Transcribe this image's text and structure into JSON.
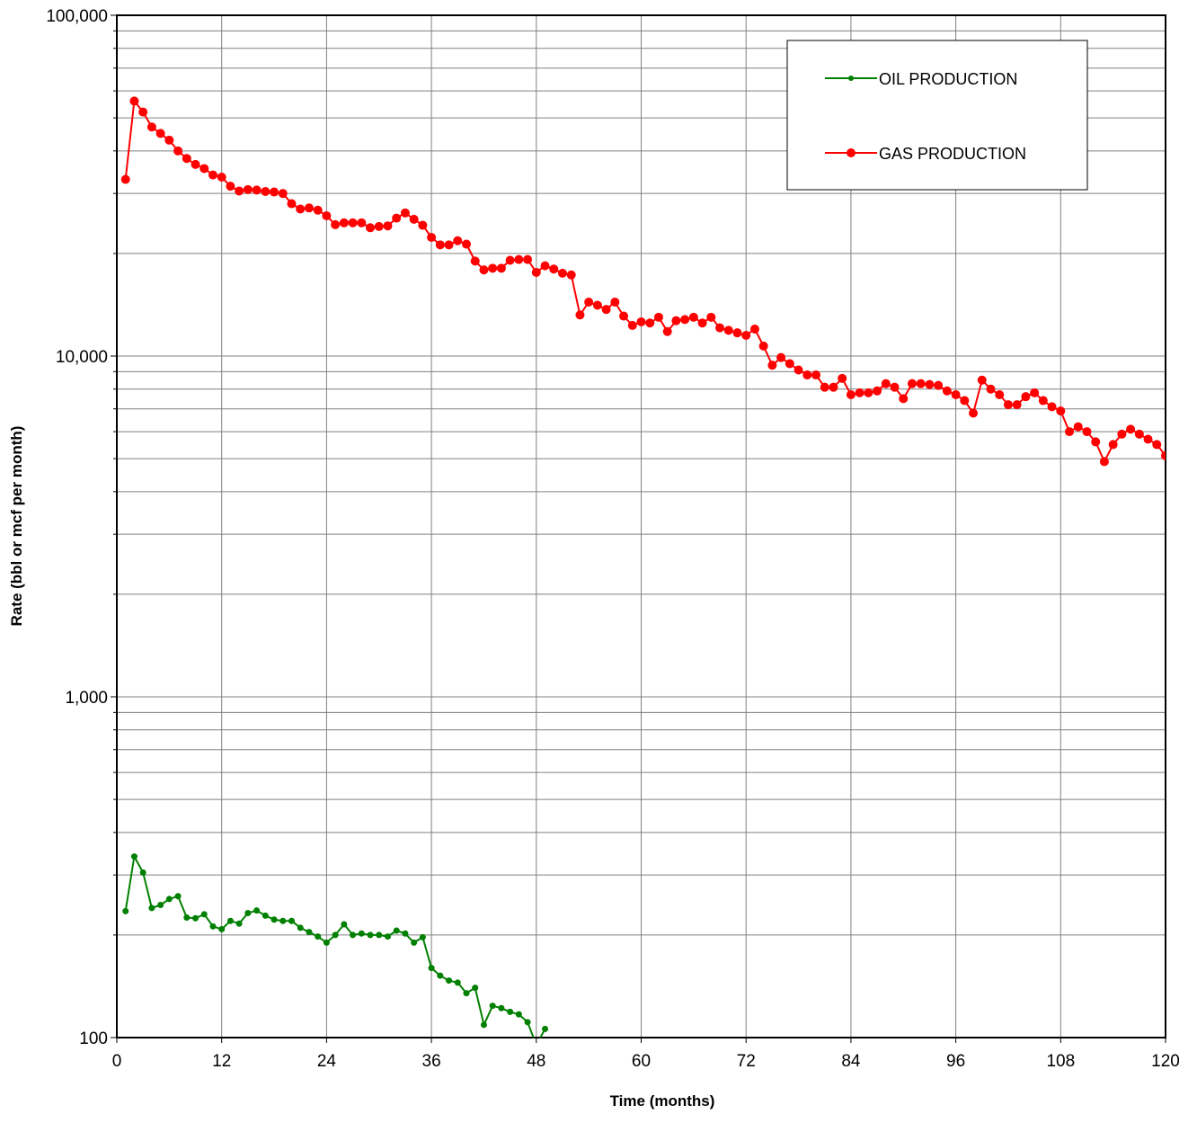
{
  "chart_data": {
    "type": "line",
    "xlabel": "Time (months)",
    "ylabel": "Rate (bbl or mcf per month)",
    "x_scale": "linear",
    "y_scale": "log",
    "xlim": [
      0,
      120
    ],
    "ylim": [
      100,
      100000
    ],
    "x_ticks": [
      "0",
      "12",
      "24",
      "36",
      "48",
      "60",
      "72",
      "84",
      "96",
      "108",
      "120"
    ],
    "x_tick_values": [
      0,
      12,
      24,
      36,
      48,
      60,
      72,
      84,
      96,
      108,
      120
    ],
    "y_ticks": [
      "100",
      "1,000",
      "10,000",
      "100,000"
    ],
    "y_tick_values": [
      100,
      1000,
      10000,
      100000
    ],
    "grid": true,
    "legend_position": "top-right",
    "series": [
      {
        "name": "OIL PRODUCTION",
        "color": "#008000",
        "marker": "small-circle",
        "points": [
          [
            1,
            235
          ],
          [
            2,
            340
          ],
          [
            3,
            305
          ],
          [
            4,
            240
          ],
          [
            5,
            245
          ],
          [
            6,
            255
          ],
          [
            7,
            260
          ],
          [
            8,
            225
          ],
          [
            9,
            224
          ],
          [
            10,
            230
          ],
          [
            11,
            212
          ],
          [
            12,
            208
          ],
          [
            13,
            220
          ],
          [
            14,
            216
          ],
          [
            15,
            232
          ],
          [
            16,
            236
          ],
          [
            17,
            228
          ],
          [
            18,
            222
          ],
          [
            19,
            220
          ],
          [
            20,
            220
          ],
          [
            21,
            210
          ],
          [
            22,
            204
          ],
          [
            23,
            198
          ],
          [
            24,
            190
          ],
          [
            25,
            200
          ],
          [
            26,
            215
          ],
          [
            27,
            200
          ],
          [
            28,
            202
          ],
          [
            29,
            200
          ],
          [
            30,
            200
          ],
          [
            31,
            198
          ],
          [
            32,
            206
          ],
          [
            33,
            202
          ],
          [
            34,
            190
          ],
          [
            35,
            197
          ],
          [
            36,
            160
          ],
          [
            37,
            152
          ],
          [
            38,
            147
          ],
          [
            39,
            145
          ],
          [
            40,
            135
          ],
          [
            41,
            140
          ],
          [
            42,
            109
          ],
          [
            43,
            124
          ],
          [
            44,
            122
          ],
          [
            45,
            119
          ],
          [
            46,
            117
          ],
          [
            47,
            111
          ],
          [
            48,
            95
          ],
          [
            49,
            106
          ]
        ]
      },
      {
        "name": "GAS PRODUCTION",
        "color": "#ff0000",
        "marker": "circle",
        "points": [
          [
            1,
            33000
          ],
          [
            2,
            56000
          ],
          [
            3,
            52000
          ],
          [
            4,
            47000
          ],
          [
            5,
            45000
          ],
          [
            6,
            43000
          ],
          [
            7,
            40000
          ],
          [
            8,
            38000
          ],
          [
            9,
            36500
          ],
          [
            10,
            35500
          ],
          [
            11,
            34000
          ],
          [
            12,
            33500
          ],
          [
            13,
            31500
          ],
          [
            14,
            30500
          ],
          [
            15,
            30800
          ],
          [
            16,
            30700
          ],
          [
            17,
            30400
          ],
          [
            18,
            30300
          ],
          [
            19,
            30000
          ],
          [
            20,
            28000
          ],
          [
            21,
            27000
          ],
          [
            22,
            27200
          ],
          [
            23,
            26800
          ],
          [
            24,
            25800
          ],
          [
            25,
            24300
          ],
          [
            26,
            24600
          ],
          [
            27,
            24600
          ],
          [
            28,
            24600
          ],
          [
            29,
            23800
          ],
          [
            30,
            24000
          ],
          [
            31,
            24100
          ],
          [
            32,
            25400
          ],
          [
            33,
            26300
          ],
          [
            34,
            25200
          ],
          [
            35,
            24200
          ],
          [
            36,
            22300
          ],
          [
            37,
            21200
          ],
          [
            38,
            21200
          ],
          [
            39,
            21800
          ],
          [
            40,
            21300
          ],
          [
            41,
            19000
          ],
          [
            42,
            17900
          ],
          [
            43,
            18100
          ],
          [
            44,
            18100
          ],
          [
            45,
            19100
          ],
          [
            46,
            19200
          ],
          [
            47,
            19200
          ],
          [
            48,
            17600
          ],
          [
            49,
            18400
          ],
          [
            50,
            18000
          ],
          [
            51,
            17500
          ],
          [
            52,
            17300
          ],
          [
            53,
            13200
          ],
          [
            54,
            14400
          ],
          [
            55,
            14100
          ],
          [
            56,
            13700
          ],
          [
            57,
            14400
          ],
          [
            58,
            13100
          ],
          [
            59,
            12300
          ],
          [
            60,
            12600
          ],
          [
            61,
            12500
          ],
          [
            62,
            13000
          ],
          [
            63,
            11800
          ],
          [
            64,
            12700
          ],
          [
            65,
            12800
          ],
          [
            66,
            13000
          ],
          [
            67,
            12500
          ],
          [
            68,
            13000
          ],
          [
            69,
            12100
          ],
          [
            70,
            11900
          ],
          [
            71,
            11700
          ],
          [
            72,
            11500
          ],
          [
            73,
            12000
          ],
          [
            74,
            10700
          ],
          [
            75,
            9400
          ],
          [
            76,
            9900
          ],
          [
            77,
            9500
          ],
          [
            78,
            9100
          ],
          [
            79,
            8800
          ],
          [
            80,
            8800
          ],
          [
            81,
            8100
          ],
          [
            82,
            8100
          ],
          [
            83,
            8600
          ],
          [
            84,
            7700
          ],
          [
            85,
            7800
          ],
          [
            86,
            7800
          ],
          [
            87,
            7900
          ],
          [
            88,
            8300
          ],
          [
            89,
            8100
          ],
          [
            90,
            7500
          ],
          [
            91,
            8300
          ],
          [
            92,
            8300
          ],
          [
            93,
            8250
          ],
          [
            94,
            8200
          ],
          [
            95,
            7900
          ],
          [
            96,
            7700
          ],
          [
            97,
            7400
          ],
          [
            98,
            6800
          ],
          [
            99,
            8500
          ],
          [
            100,
            8000
          ],
          [
            101,
            7700
          ],
          [
            102,
            7200
          ],
          [
            103,
            7200
          ],
          [
            104,
            7600
          ],
          [
            105,
            7800
          ],
          [
            106,
            7400
          ],
          [
            107,
            7100
          ],
          [
            108,
            6900
          ],
          [
            109,
            6000
          ],
          [
            110,
            6200
          ],
          [
            111,
            6000
          ],
          [
            112,
            5600
          ],
          [
            113,
            4900
          ],
          [
            114,
            5500
          ],
          [
            115,
            5900
          ],
          [
            116,
            6100
          ],
          [
            117,
            5900
          ],
          [
            118,
            5700
          ],
          [
            119,
            5500
          ],
          [
            120,
            5100
          ]
        ]
      }
    ]
  }
}
